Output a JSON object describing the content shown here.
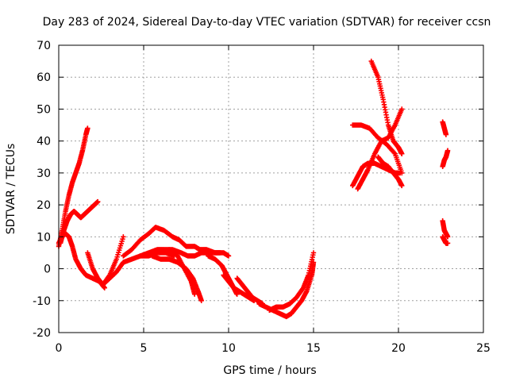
{
  "chart_data": {
    "type": "scatter",
    "title": "Day 283 of 2024, Sidereal Day-to-day VTEC variation (SDTVAR) for receiver ccsn",
    "xlabel": "GPS time / hours",
    "ylabel": "SDTVAR / TECUs",
    "xlim": [
      0,
      25
    ],
    "ylim": [
      -20,
      70
    ],
    "xticks": [
      0,
      5,
      10,
      15,
      20,
      25
    ],
    "yticks": [
      -20,
      -10,
      0,
      10,
      20,
      30,
      40,
      50,
      60,
      70
    ],
    "grid": true,
    "marker": "+",
    "color": "#ff0000",
    "series": [
      {
        "x": [
          0.0,
          0.2,
          0.4,
          0.6,
          0.8,
          1.0,
          1.2,
          1.4,
          1.6,
          1.7
        ],
        "y": [
          7,
          12,
          18,
          23,
          27,
          30,
          33,
          37,
          42,
          44
        ]
      },
      {
        "x": [
          0.1,
          0.3,
          0.5,
          0.7,
          0.9,
          1.1,
          1.3,
          1.5,
          1.7,
          1.9,
          2.1,
          2.3
        ],
        "y": [
          8,
          12,
          15,
          17,
          18,
          17,
          16,
          17,
          18,
          19,
          20,
          21
        ]
      },
      {
        "x": [
          0.0,
          0.2,
          0.4,
          0.6,
          0.8,
          1.0,
          1.3,
          1.6,
          2.0,
          2.4,
          2.7
        ],
        "y": [
          8,
          10,
          11,
          10,
          7,
          3,
          0,
          -2,
          -3,
          -4,
          -6
        ]
      },
      {
        "x": [
          1.7,
          2.0,
          2.3,
          2.6,
          3.0,
          3.4,
          3.8,
          4.3,
          4.8,
          5.3,
          5.8,
          6.3,
          6.8
        ],
        "y": [
          5,
          0,
          -3,
          -5,
          -3,
          -1,
          2,
          3,
          4,
          4,
          5,
          5,
          4
        ]
      },
      {
        "x": [
          2.6,
          3.0,
          3.4,
          3.8
        ],
        "y": [
          -5,
          -2,
          3,
          10
        ]
      },
      {
        "x": [
          3.8,
          4.3,
          4.8,
          5.3,
          5.7,
          6.2,
          6.7,
          7.1,
          7.5,
          8.0,
          8.3,
          8.7,
          9.2,
          9.7,
          10.0
        ],
        "y": [
          4,
          6,
          9,
          11,
          13,
          12,
          10,
          9,
          7,
          7,
          6,
          6,
          5,
          5,
          4
        ]
      },
      {
        "x": [
          4.8,
          5.3,
          5.8,
          6.2,
          6.7,
          7.2,
          7.6,
          8.0,
          8.4,
          8.8,
          9.2,
          9.5
        ],
        "y": [
          4,
          5,
          6,
          6,
          6,
          5,
          4,
          4,
          5,
          5,
          5,
          5
        ]
      },
      {
        "x": [
          5.5,
          6.0,
          6.5,
          7.0,
          7.5,
          7.9,
          8.2,
          8.4
        ],
        "y": [
          4,
          3,
          3,
          2,
          0,
          -3,
          -7,
          -10
        ]
      },
      {
        "x": [
          6.5,
          7.0,
          7.4,
          7.8,
          8.0
        ],
        "y": [
          6,
          4,
          0,
          -4,
          -8
        ]
      },
      {
        "x": [
          8.8,
          9.2,
          9.6,
          9.8,
          10.0,
          10.2,
          10.4,
          10.5
        ],
        "y": [
          4,
          3,
          1,
          -1,
          -3,
          -5,
          -7,
          -8
        ]
      },
      {
        "x": [
          9.7,
          10.0,
          10.3,
          10.6,
          10.9,
          11.2,
          11.5
        ],
        "y": [
          -2,
          -4,
          -6,
          -7,
          -8,
          -9,
          -10
        ]
      },
      {
        "x": [
          10.5,
          10.8,
          11.1,
          11.4,
          11.7,
          12.0
        ],
        "y": [
          -3,
          -5,
          -7,
          -9,
          -10,
          -11
        ]
      },
      {
        "x": [
          11.8,
          12.2,
          12.6,
          13.0,
          13.4,
          13.7,
          14.0,
          14.3,
          14.6,
          14.9,
          15.0
        ],
        "y": [
          -11,
          -12,
          -13,
          -14,
          -15,
          -14,
          -12,
          -10,
          -7,
          -2,
          2
        ]
      },
      {
        "x": [
          12.4,
          12.8,
          13.2,
          13.6,
          14.0,
          14.4,
          14.7,
          15.0
        ],
        "y": [
          -13,
          -12,
          -12,
          -11,
          -9,
          -6,
          -2,
          5
        ]
      },
      {
        "x": [
          17.3,
          17.8,
          18.3,
          18.8,
          19.3,
          19.8,
          20.2
        ],
        "y": [
          45,
          45,
          44,
          41,
          39,
          36,
          30
        ]
      },
      {
        "x": [
          17.3,
          17.6,
          17.9,
          18.2,
          18.6,
          19.0,
          19.4,
          19.8,
          20.1
        ],
        "y": [
          26,
          29,
          32,
          33,
          33,
          32,
          31,
          30,
          30
        ]
      },
      {
        "x": [
          17.6,
          17.9,
          18.2,
          18.6,
          19.0,
          19.4,
          19.8,
          20.2
        ],
        "y": [
          25,
          28,
          31,
          36,
          40,
          41,
          45,
          50
        ]
      },
      {
        "x": [
          18.4,
          18.8,
          19.1,
          19.4,
          19.7,
          20.0,
          20.2
        ],
        "y": [
          65,
          60,
          53,
          45,
          40,
          38,
          36
        ]
      },
      {
        "x": [
          18.8,
          19.1,
          19.4,
          19.7,
          20.0,
          20.2
        ],
        "y": [
          35,
          33,
          32,
          30,
          28,
          26
        ]
      },
      {
        "x": [
          22.6,
          22.7,
          22.8
        ],
        "y": [
          46,
          44,
          42
        ]
      },
      {
        "x": [
          22.6,
          22.7,
          22.8,
          22.9
        ],
        "y": [
          32,
          34,
          35,
          37
        ]
      },
      {
        "x": [
          22.6,
          22.7,
          22.8,
          22.9
        ],
        "y": [
          15,
          12,
          11,
          10
        ]
      },
      {
        "x": [
          22.6,
          22.7,
          22.8,
          22.9
        ],
        "y": [
          10,
          9,
          8,
          8
        ]
      }
    ]
  }
}
